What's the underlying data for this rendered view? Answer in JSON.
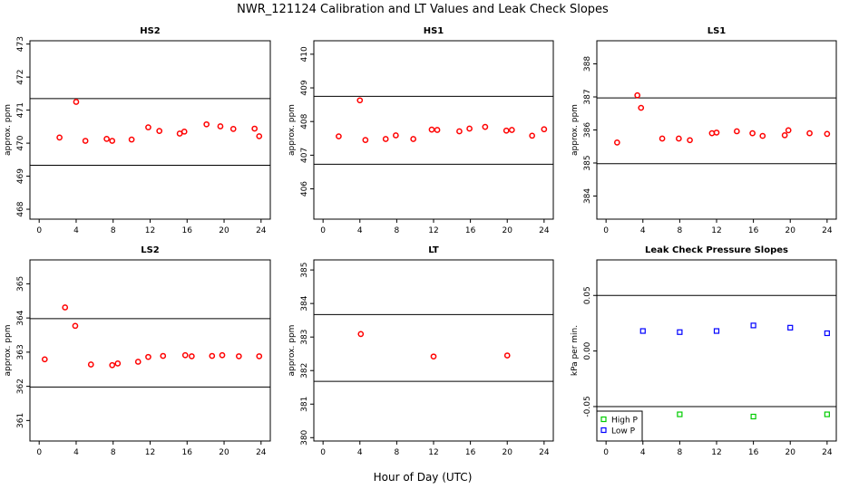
{
  "figure": {
    "title": "NWR_121124  Calibration and LT Values and Leak Check Slopes",
    "xlabel": "Hour of Day (UTC)"
  },
  "chart_data": [
    {
      "type": "scatter",
      "title": "HS2",
      "ylabel": "approx. ppm",
      "xlim": [
        -1,
        25
      ],
      "ylim": [
        467.7,
        473.1
      ],
      "xticks": [
        0,
        4,
        8,
        12,
        16,
        20,
        24
      ],
      "yticks": [
        468,
        469,
        470,
        471,
        472,
        473
      ],
      "hlines": [
        471.35,
        469.33
      ],
      "color": "#ff0000",
      "x": [
        2.2,
        4.0,
        5.0,
        7.3,
        7.9,
        10.0,
        11.8,
        13.0,
        15.2,
        15.7,
        18.1,
        19.6,
        21.0,
        23.3,
        23.8
      ],
      "y": [
        470.17,
        471.25,
        470.07,
        470.13,
        470.07,
        470.11,
        470.48,
        470.37,
        470.29,
        470.35,
        470.57,
        470.51,
        470.43,
        470.44,
        470.21
      ]
    },
    {
      "type": "scatter",
      "title": "HS1",
      "ylabel": "approx. ppm",
      "xlim": [
        -1,
        25
      ],
      "ylim": [
        405.1,
        410.4
      ],
      "xticks": [
        0,
        4,
        8,
        12,
        16,
        20,
        24
      ],
      "yticks": [
        406,
        407,
        408,
        409,
        410
      ],
      "hlines": [
        408.75,
        406.73
      ],
      "color": "#ff0000",
      "x": [
        1.7,
        4.0,
        4.6,
        6.8,
        7.9,
        9.8,
        11.8,
        12.4,
        14.8,
        15.9,
        17.6,
        19.9,
        20.5,
        22.7,
        24.0
      ],
      "y": [
        407.56,
        408.63,
        407.45,
        407.48,
        407.59,
        407.48,
        407.76,
        407.75,
        407.71,
        407.79,
        407.84,
        407.73,
        407.75,
        407.58,
        407.77
      ]
    },
    {
      "type": "scatter",
      "title": "LS1",
      "ylabel": "approx. ppm",
      "xlim": [
        -1,
        25
      ],
      "ylim": [
        383.3,
        388.7
      ],
      "xticks": [
        0,
        4,
        8,
        12,
        16,
        20,
        24
      ],
      "yticks": [
        384,
        385,
        386,
        387,
        388
      ],
      "hlines": [
        386.97,
        384.98
      ],
      "color": "#ff0000",
      "x": [
        1.2,
        3.4,
        3.8,
        6.1,
        7.9,
        9.1,
        11.5,
        12.0,
        14.2,
        15.9,
        17.0,
        19.4,
        19.8,
        22.1,
        24.0
      ],
      "y": [
        385.62,
        387.05,
        386.67,
        385.74,
        385.74,
        385.69,
        385.9,
        385.92,
        385.96,
        385.9,
        385.82,
        385.84,
        385.99,
        385.9,
        385.88
      ]
    },
    {
      "type": "scatter",
      "title": "LS2",
      "ylabel": "approx. ppm",
      "xlim": [
        -1,
        25
      ],
      "ylim": [
        360.4,
        365.7
      ],
      "xticks": [
        0,
        4,
        8,
        12,
        16,
        20,
        24
      ],
      "yticks": [
        361,
        362,
        363,
        364,
        365
      ],
      "hlines": [
        363.98,
        361.98
      ],
      "color": "#ff0000",
      "x": [
        0.6,
        2.8,
        3.9,
        5.6,
        7.9,
        8.5,
        10.7,
        11.8,
        13.4,
        15.8,
        16.5,
        18.7,
        19.8,
        21.6,
        23.8
      ],
      "y": [
        362.79,
        364.31,
        363.77,
        362.64,
        362.62,
        362.67,
        362.72,
        362.86,
        362.89,
        362.91,
        362.88,
        362.89,
        362.91,
        362.88,
        362.88
      ]
    },
    {
      "type": "scatter",
      "title": "LT",
      "ylabel": "approx. ppm",
      "xlim": [
        -1,
        25
      ],
      "ylim": [
        379.9,
        385.3
      ],
      "xticks": [
        0,
        4,
        8,
        12,
        16,
        20,
        24
      ],
      "yticks": [
        380,
        381,
        382,
        383,
        384,
        385
      ],
      "hlines": [
        383.67,
        381.68
      ],
      "color": "#ff0000",
      "x": [
        4.1,
        12.0,
        20.0
      ],
      "y": [
        383.09,
        382.42,
        382.45
      ]
    },
    {
      "type": "scatter",
      "title": "Leak Check Pressure Slopes",
      "ylabel": "kPa per min.",
      "xlim": [
        -1,
        25
      ],
      "ylim": [
        -0.081,
        0.082
      ],
      "xticks": [
        0,
        4,
        8,
        12,
        16,
        20,
        24
      ],
      "yticks": [
        -0.05,
        0.0,
        0.05
      ],
      "ytick_labels": [
        "-0.05",
        "0.00",
        "0.05"
      ],
      "hlines": [
        0.05,
        -0.05
      ],
      "series": [
        {
          "name": "High P",
          "color": "#00cc00",
          "x": [
            8,
            16,
            24
          ],
          "y": [
            -0.057,
            -0.059,
            -0.057
          ]
        },
        {
          "name": "Low P",
          "color": "#0000ff",
          "x": [
            4,
            8,
            12,
            16,
            20,
            24
          ],
          "y": [
            0.018,
            0.017,
            0.018,
            0.023,
            0.021,
            0.016
          ]
        }
      ],
      "legend": "bottom-left"
    }
  ]
}
